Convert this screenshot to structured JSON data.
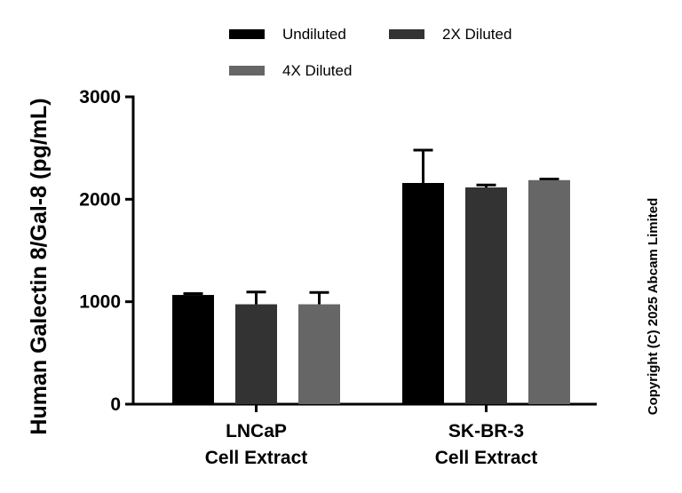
{
  "chart_data": {
    "type": "bar",
    "title": "",
    "ylabel": "Human Galectin 8/Gal-8 (pg/mL)",
    "xlabel": "",
    "ylim": [
      0,
      3000
    ],
    "yticks": [
      "0",
      "1000",
      "2000",
      "3000"
    ],
    "categories": [
      [
        "LNCaP",
        "Cell Extract"
      ],
      [
        "SK-BR-3",
        "Cell Extract"
      ]
    ],
    "series": [
      {
        "name": "Undiluted",
        "color": "#000000",
        "values": [
          1066,
          2159
        ],
        "error": [
          14,
          321
        ]
      },
      {
        "name": "2X Diluted",
        "color": "#333333",
        "values": [
          975,
          2116
        ],
        "error": [
          120,
          23
        ]
      },
      {
        "name": "4X Diluted",
        "color": "#666666",
        "values": [
          975,
          2187
        ],
        "error": [
          115,
          10
        ]
      }
    ],
    "legend_position": "top",
    "copyright": "Copyright (C) 2025 Abcam Limited"
  }
}
